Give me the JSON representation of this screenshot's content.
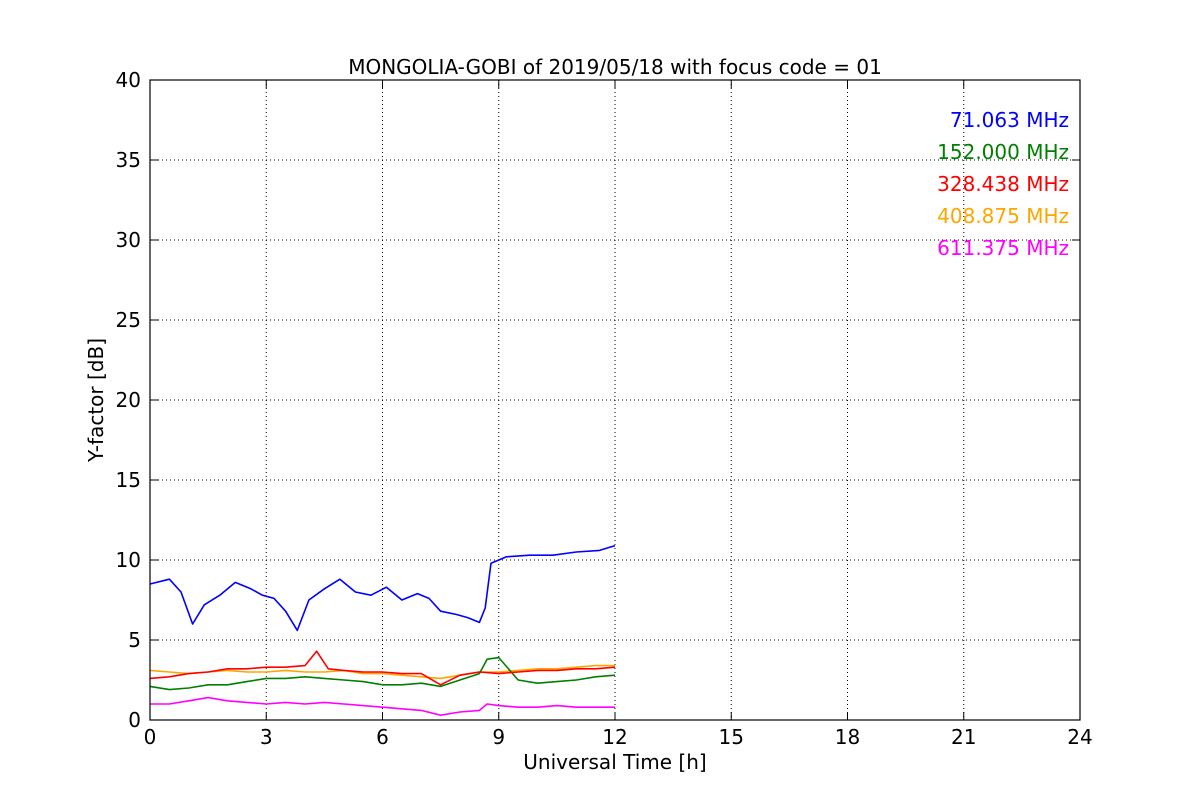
{
  "chart_data": {
    "type": "line",
    "title": "MONGOLIA-GOBI of 2019/05/18 with focus code = 01",
    "xlabel": "Universal Time [h]",
    "ylabel": "Y-factor [dB]",
    "xlim": [
      0,
      24
    ],
    "ylim": [
      0,
      40
    ],
    "xticks": [
      "0",
      "3",
      "6",
      "9",
      "12",
      "15",
      "18",
      "21",
      "24"
    ],
    "yticks": [
      "0",
      "5",
      "10",
      "15",
      "20",
      "25",
      "30",
      "35",
      "40"
    ],
    "grid": true,
    "legend_position": "top-right",
    "series": [
      {
        "name": "71.063 MHz",
        "color": "#0000ff",
        "x": [
          0,
          0.5,
          0.8,
          1.1,
          1.4,
          1.8,
          2.2,
          2.6,
          2.9,
          3.2,
          3.5,
          3.8,
          4.1,
          4.5,
          4.9,
          5.3,
          5.7,
          6.1,
          6.5,
          6.9,
          7.2,
          7.5,
          7.9,
          8.2,
          8.5,
          8.65,
          8.8,
          9.2,
          9.8,
          10.4,
          11.0,
          11.6,
          12.0
        ],
        "y": [
          8.5,
          8.8,
          8.0,
          6.0,
          7.2,
          7.8,
          8.6,
          8.2,
          7.8,
          7.6,
          6.8,
          5.6,
          7.5,
          8.2,
          8.8,
          8.0,
          7.8,
          8.3,
          7.5,
          7.9,
          7.6,
          6.8,
          6.6,
          6.4,
          6.1,
          7.0,
          9.8,
          10.2,
          10.3,
          10.3,
          10.5,
          10.6,
          10.9
        ]
      },
      {
        "name": "152.000 MHz",
        "color": "#008000",
        "x": [
          0,
          0.5,
          1.0,
          1.5,
          2.0,
          2.5,
          3.0,
          3.5,
          4.0,
          4.5,
          5.0,
          5.5,
          6.0,
          6.5,
          7.0,
          7.5,
          8.0,
          8.5,
          8.7,
          9.0,
          9.5,
          10.0,
          10.5,
          11.0,
          11.5,
          12.0
        ],
        "y": [
          2.1,
          1.9,
          2.0,
          2.2,
          2.2,
          2.4,
          2.6,
          2.6,
          2.7,
          2.6,
          2.5,
          2.4,
          2.2,
          2.2,
          2.3,
          2.1,
          2.5,
          2.9,
          3.8,
          3.9,
          2.5,
          2.3,
          2.4,
          2.5,
          2.7,
          2.8
        ]
      },
      {
        "name": "328.438 MHz",
        "color": "#ff0000",
        "x": [
          0,
          0.5,
          1.0,
          1.5,
          2.0,
          2.5,
          3.0,
          3.5,
          4.0,
          4.3,
          4.6,
          5.0,
          5.5,
          6.0,
          6.5,
          7.0,
          7.5,
          8.0,
          8.5,
          9.0,
          9.5,
          10.0,
          10.5,
          11.0,
          11.5,
          12.0
        ],
        "y": [
          2.6,
          2.7,
          2.9,
          3.0,
          3.2,
          3.2,
          3.3,
          3.3,
          3.4,
          4.3,
          3.2,
          3.1,
          3.0,
          3.0,
          2.9,
          2.9,
          2.2,
          2.8,
          3.0,
          2.9,
          3.0,
          3.1,
          3.1,
          3.2,
          3.2,
          3.3
        ]
      },
      {
        "name": "408.875 MHz",
        "color": "#ffa500",
        "x": [
          0,
          0.5,
          1.0,
          1.5,
          2.0,
          2.5,
          3.0,
          3.5,
          4.0,
          4.5,
          5.0,
          5.5,
          6.0,
          6.5,
          7.0,
          7.5,
          8.0,
          8.5,
          9.0,
          9.5,
          10.0,
          10.5,
          11.0,
          11.5,
          12.0
        ],
        "y": [
          3.1,
          3.0,
          2.9,
          3.0,
          3.1,
          3.0,
          3.0,
          3.1,
          3.0,
          3.0,
          3.1,
          2.9,
          2.9,
          2.8,
          2.7,
          2.6,
          2.8,
          3.0,
          3.0,
          3.1,
          3.2,
          3.2,
          3.3,
          3.4,
          3.4
        ]
      },
      {
        "name": "611.375 MHz",
        "color": "#ff00ff",
        "x": [
          0,
          0.5,
          1.0,
          1.5,
          2.0,
          2.5,
          3.0,
          3.5,
          4.0,
          4.5,
          5.0,
          5.5,
          6.0,
          6.5,
          7.0,
          7.5,
          8.0,
          8.5,
          8.7,
          9.0,
          9.5,
          10.0,
          10.5,
          11.0,
          11.5,
          12.0
        ],
        "y": [
          1.0,
          1.0,
          1.2,
          1.4,
          1.2,
          1.1,
          1.0,
          1.1,
          1.0,
          1.1,
          1.0,
          0.9,
          0.8,
          0.7,
          0.6,
          0.3,
          0.5,
          0.6,
          1.0,
          0.9,
          0.8,
          0.8,
          0.9,
          0.8,
          0.8,
          0.8
        ]
      }
    ]
  }
}
